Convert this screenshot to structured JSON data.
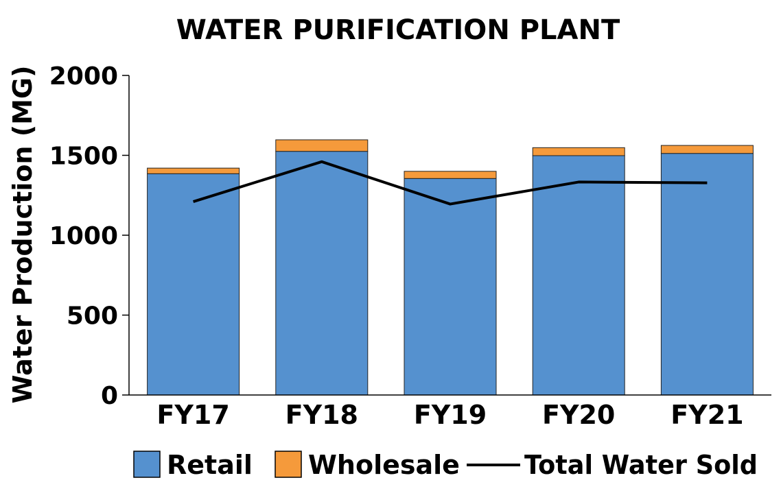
{
  "chart_data": {
    "type": "bar",
    "stacked": true,
    "title": "WATER PURIFICATION PLANT",
    "xlabel": "",
    "ylabel": "Water Production (MG)",
    "ylim": [
      0,
      2000
    ],
    "yticks": [
      "0",
      "500",
      "1000",
      "1500",
      "2000"
    ],
    "grid": false,
    "legend_position": "bottom",
    "categories": [
      "FY17",
      "FY18",
      "FY19",
      "FY20",
      "FY21"
    ],
    "series": [
      {
        "name": "Retail",
        "type": "bar",
        "color": "#5591cf",
        "values": [
          1385,
          1525,
          1355,
          1498,
          1512
        ]
      },
      {
        "name": "Wholesale",
        "type": "bar",
        "color": "#f59a3b",
        "values": [
          35,
          72,
          45,
          50,
          50
        ]
      },
      {
        "name": "Total Water Sold",
        "type": "line",
        "color": "#000000",
        "values": [
          1210,
          1460,
          1195,
          1333,
          1328
        ]
      }
    ]
  }
}
